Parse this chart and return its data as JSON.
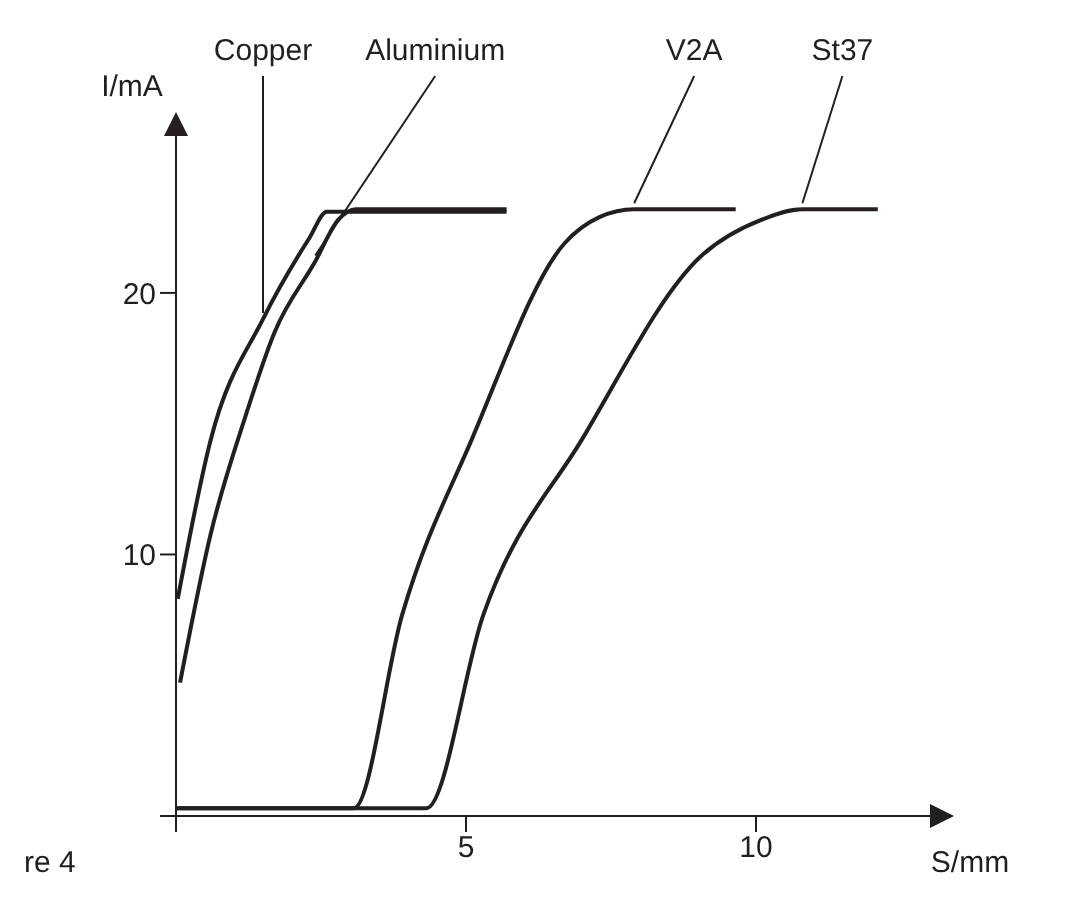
{
  "chart_data": {
    "type": "line",
    "xlabel": "S/mm",
    "ylabel": "I/mA",
    "xlim": [
      0,
      13
    ],
    "ylim": [
      0,
      26
    ],
    "xticks": [
      {
        "value": 0,
        "label": null
      },
      5,
      10
    ],
    "yticks": [
      {
        "value": 0,
        "label": null
      },
      10,
      20
    ],
    "grid": false,
    "legend": false,
    "marker": "none",
    "line_style": "solid",
    "annotations": [
      "re 4"
    ],
    "series": [
      {
        "name": "Copper",
        "color": "#231f20",
        "x": [
          0.03,
          0.6,
          1.5,
          2.3,
          2.6,
          5.7
        ],
        "values": [
          8.3,
          14.4,
          19.0,
          22.1,
          23.1,
          23.1
        ]
      },
      {
        "name": "Aluminium",
        "color": "#231f20",
        "x": [
          0.07,
          0.6,
          1.2,
          1.7,
          2.4,
          2.8,
          3.1,
          5.7
        ],
        "values": [
          5.1,
          10.8,
          15.3,
          18.5,
          21.2,
          22.8,
          23.2,
          23.2
        ]
      },
      {
        "name": "V2A",
        "color": "#231f20",
        "x": [
          0,
          3.07,
          3.9,
          5.1,
          6.7,
          7.3,
          7.9,
          9.65
        ],
        "values": [
          0.3,
          0.3,
          7.7,
          14.4,
          21.9,
          22.9,
          23.2,
          23.2
        ]
      },
      {
        "name": "St37",
        "color": "#231f20",
        "x": [
          0,
          4.32,
          5.3,
          7.0,
          9.05,
          10.1,
          10.8,
          12.1
        ],
        "values": [
          0.3,
          0.3,
          7.7,
          14.4,
          21.4,
          22.8,
          23.2,
          23.2
        ]
      }
    ]
  }
}
